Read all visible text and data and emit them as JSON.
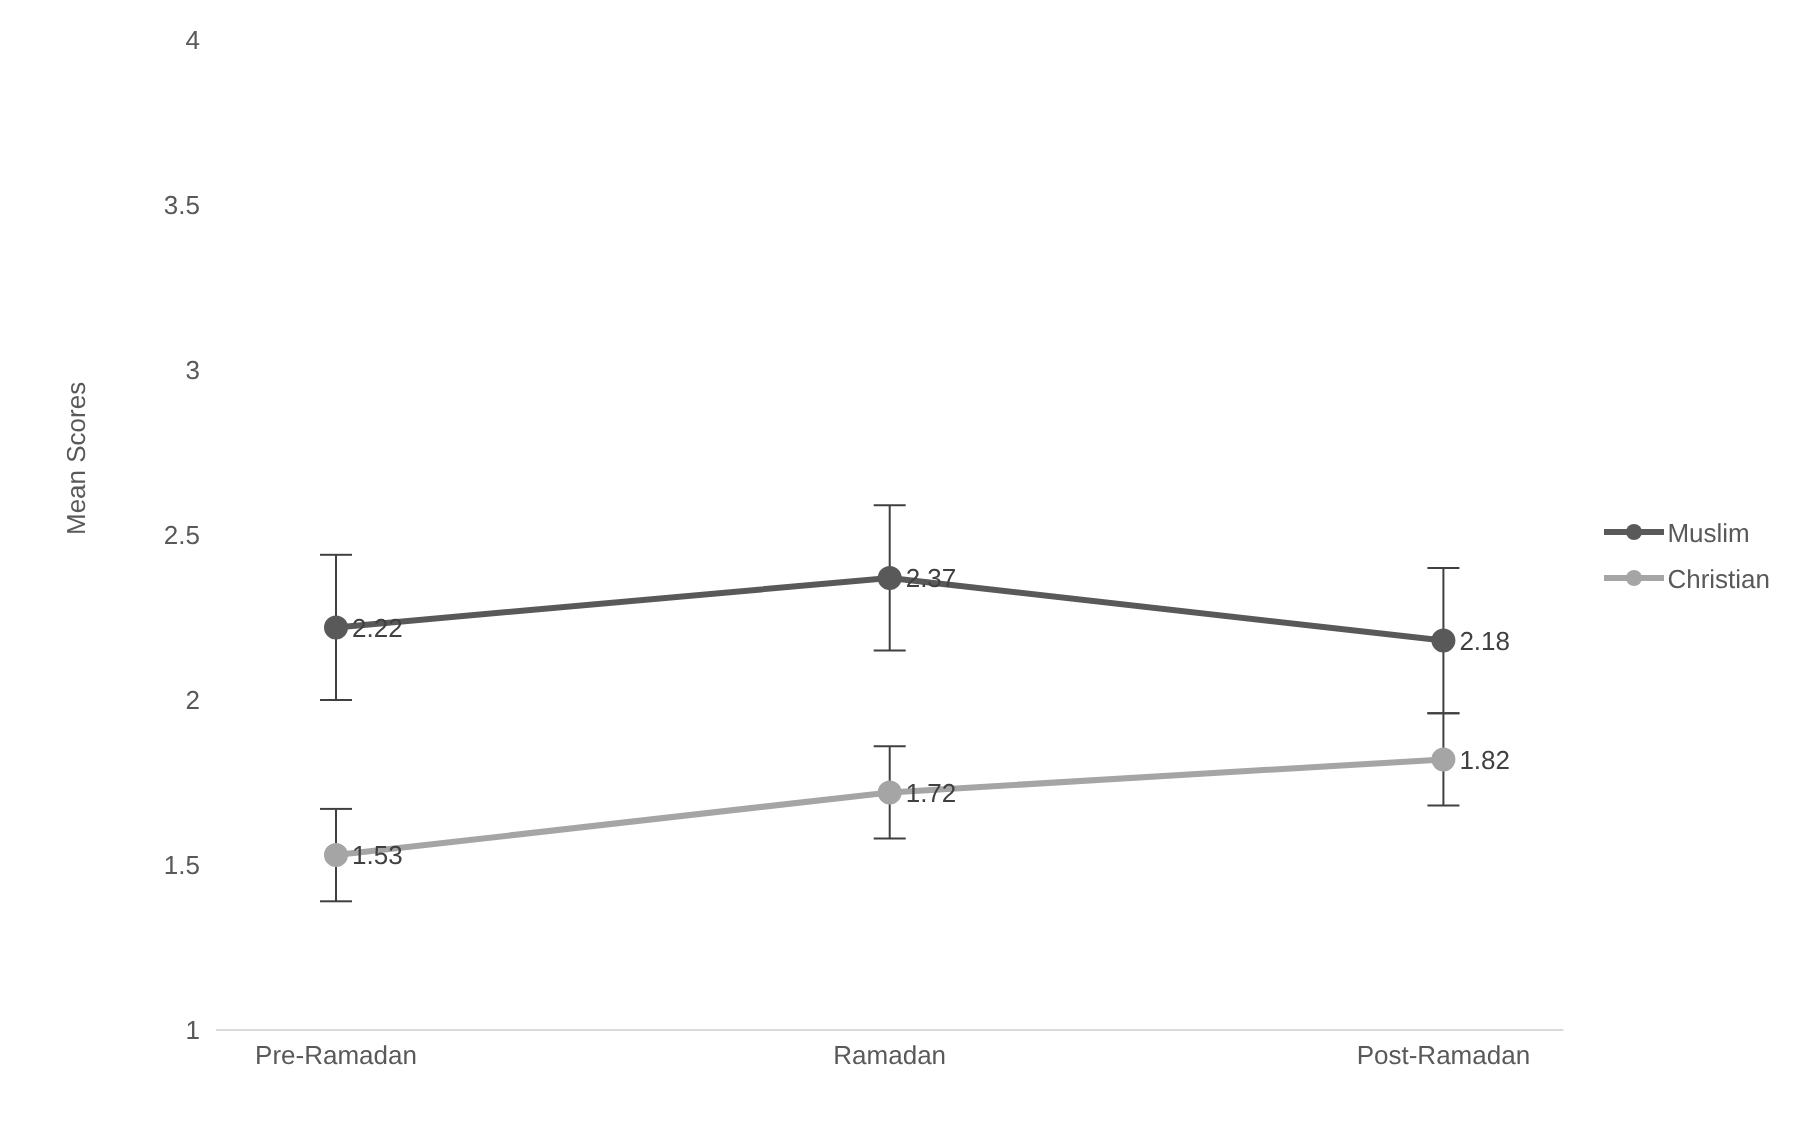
{
  "chart_data": {
    "type": "line",
    "ylabel": "Mean Scores",
    "categories": [
      "Pre-Ramadan",
      "Ramadan",
      "Post-Ramadan"
    ],
    "series": [
      {
        "name": "Muslim",
        "color": "#595959",
        "values": [
          2.22,
          2.37,
          2.18
        ],
        "errors": [
          0.22,
          0.22,
          0.22
        ]
      },
      {
        "name": "Christian",
        "color": "#a5a5a5",
        "values": [
          1.53,
          1.72,
          1.82
        ],
        "errors": [
          0.14,
          0.14,
          0.14
        ]
      }
    ],
    "ylim": [
      1,
      4
    ],
    "yticks": [
      1,
      1.5,
      2,
      2.5,
      3,
      3.5,
      4
    ],
    "grid": false,
    "legend": "right",
    "marker": "circle",
    "line_style": "solid",
    "data_labels": true
  }
}
